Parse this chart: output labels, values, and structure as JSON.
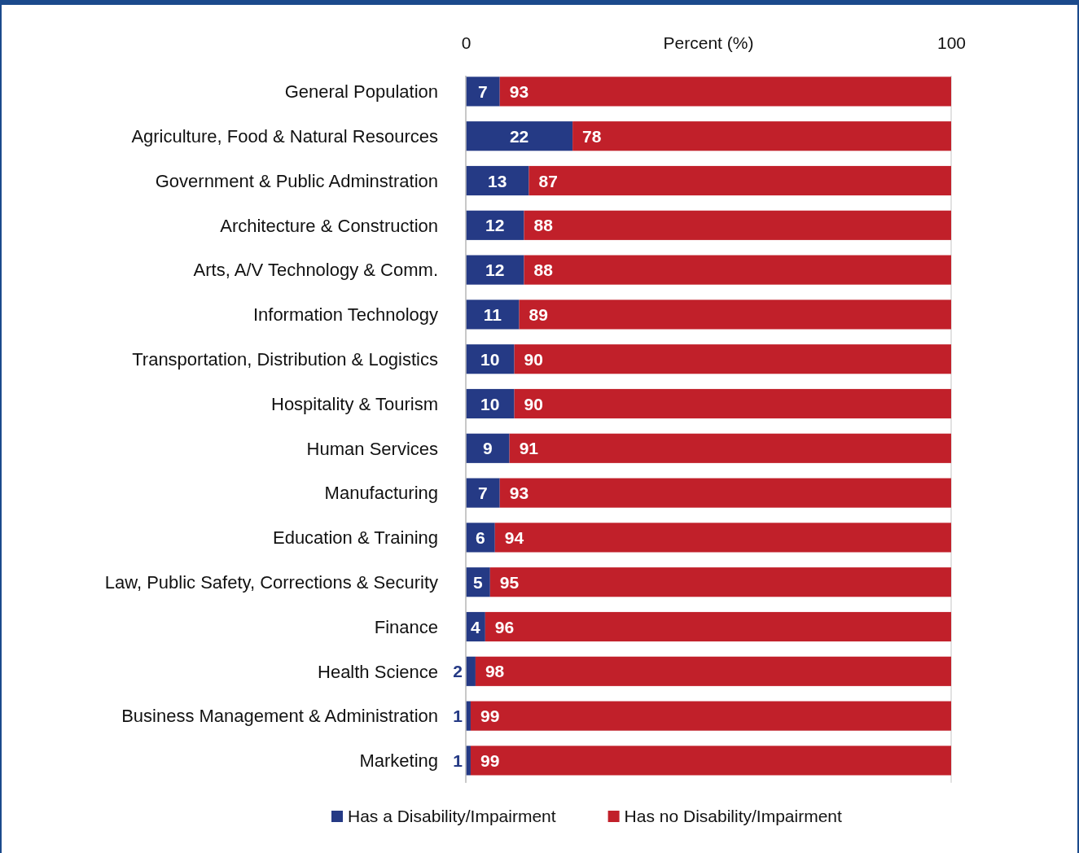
{
  "chart_data": {
    "type": "bar",
    "orientation": "horizontal",
    "stacked": true,
    "xlabel": "Percent (%)",
    "categories": [
      "General Population",
      "Agriculture, Food & Natural Resources",
      "Government & Public Adminstration",
      "Architecture & Construction",
      "Arts, A/V Technology & Comm.",
      "Information Technology",
      "Transportation, Distribution & Logistics",
      "Hospitality & Tourism",
      "Human Services",
      "Manufacturing",
      "Education & Training",
      "Law, Public Safety, Corrections & Security",
      "Finance",
      "Health Science",
      "Business Management & Administration",
      "Marketing"
    ],
    "series": [
      {
        "name": "Has a Disability/Impairment",
        "color": "#253a85",
        "values": [
          7,
          22,
          13,
          12,
          12,
          11,
          10,
          10,
          9,
          7,
          6,
          5,
          4,
          2,
          1,
          1
        ]
      },
      {
        "name": "Has no Disability/Impairment",
        "color": "#c1202a",
        "values": [
          93,
          78,
          87,
          88,
          88,
          89,
          90,
          90,
          91,
          93,
          94,
          95,
          96,
          98,
          99,
          99
        ]
      }
    ],
    "xlim": [
      0,
      100
    ],
    "xticks": [
      0,
      100
    ],
    "grid": "x",
    "data_labels": true,
    "legend": "bottom"
  }
}
